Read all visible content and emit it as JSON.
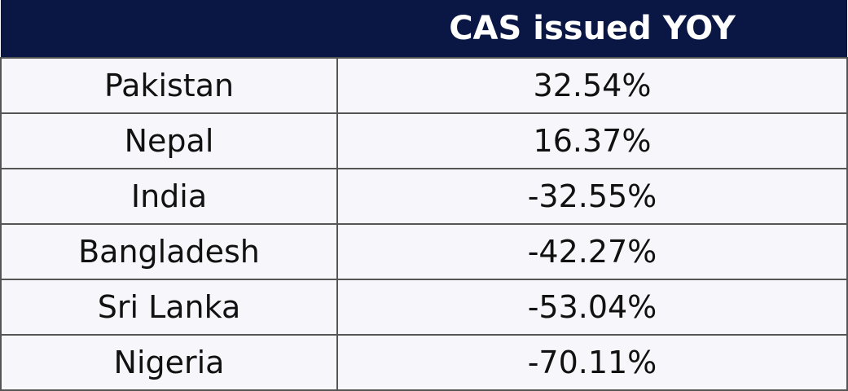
{
  "table": {
    "header": "CAS issued YOY",
    "rows": [
      [
        "Pakistan",
        "32.54%"
      ],
      [
        "Nepal",
        "16.37%"
      ],
      [
        "India",
        "-32.55%"
      ],
      [
        "Bangladesh",
        "-42.27%"
      ],
      [
        "Sri Lanka",
        "-53.04%"
      ],
      [
        "Nigeria",
        "-70.11%"
      ]
    ]
  }
}
